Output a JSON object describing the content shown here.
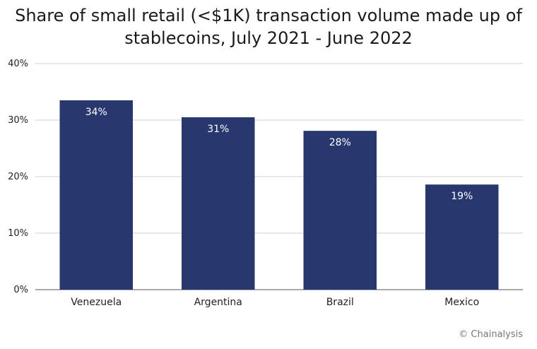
{
  "chart_data": {
    "type": "bar",
    "title_line1": "Share of small retail (<$1K) transaction volume made up of",
    "title_line2": "stablecoins, July 2021 - June 2022",
    "categories": [
      "Venezuela",
      "Argentina",
      "Brazil",
      "Mexico"
    ],
    "values": [
      33.5,
      30.5,
      28.1,
      18.6
    ],
    "data_labels": [
      "34%",
      "31%",
      "28%",
      "19%"
    ],
    "ylim": [
      0,
      40
    ],
    "yticks": [
      0,
      10,
      20,
      30,
      40
    ],
    "ytick_labels": [
      "0%",
      "10%",
      "20%",
      "30%",
      "40%"
    ],
    "grid": true,
    "bar_color": "#28386e",
    "grid_color": "#d0d0d0"
  },
  "credit": "© Chainalysis"
}
